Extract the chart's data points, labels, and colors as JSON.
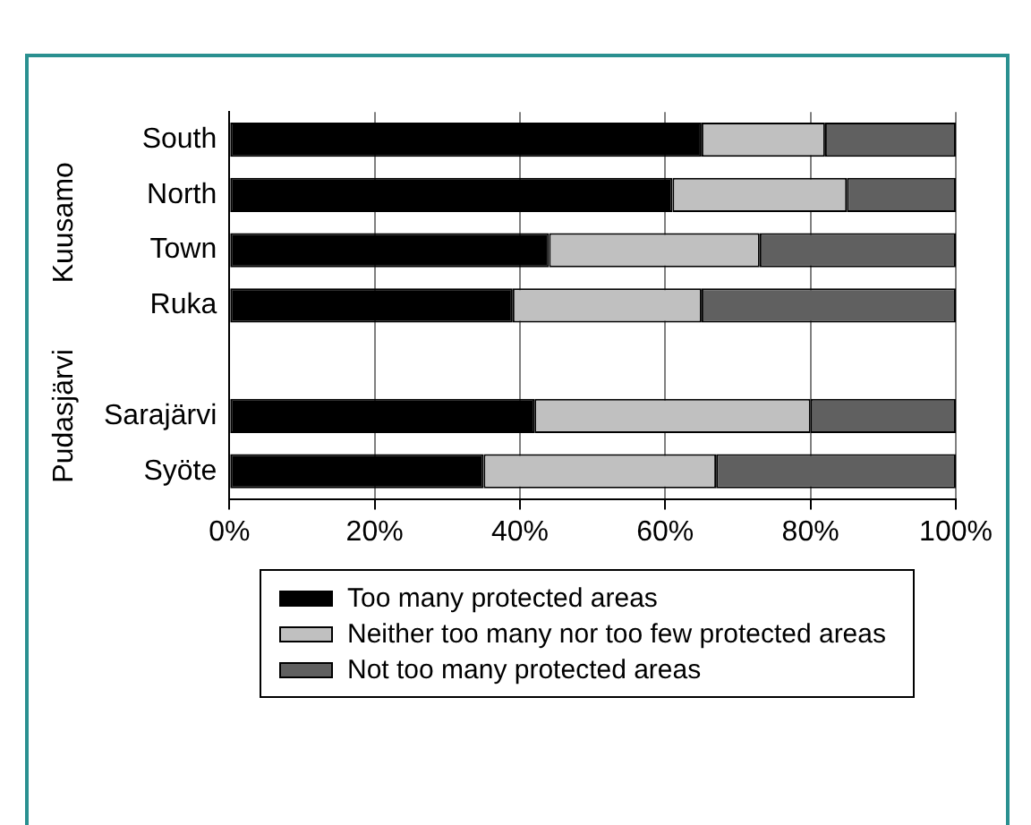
{
  "chart_data": {
    "type": "bar",
    "orientation": "horizontal",
    "stacked": true,
    "categories": [
      "South",
      "North",
      "Town",
      "Ruka",
      null,
      "Sarajärvi",
      "Syöte"
    ],
    "series": [
      {
        "name": "Too many protected areas",
        "color": "#000000",
        "values": [
          65,
          61,
          44,
          39,
          null,
          42,
          35
        ]
      },
      {
        "name": "Neither too many nor too few protected areas",
        "color": "#c0c0c0",
        "values": [
          17,
          24,
          29,
          26,
          null,
          38,
          32
        ]
      },
      {
        "name": "Not too many protected areas",
        "color": "#606060",
        "values": [
          18,
          15,
          27,
          35,
          null,
          20,
          33
        ]
      }
    ],
    "xlim": [
      0,
      100
    ],
    "xticks": [
      {
        "value": 0,
        "label": "0%"
      },
      {
        "value": 20,
        "label": "20%"
      },
      {
        "value": 40,
        "label": "40%"
      },
      {
        "value": 60,
        "label": "60%"
      },
      {
        "value": 80,
        "label": "80%"
      },
      {
        "value": 100,
        "label": "100%"
      }
    ],
    "grid": "x",
    "legend": "bottom",
    "annotations": [
      "Kuusamo",
      "Pudasjärvi"
    ]
  }
}
